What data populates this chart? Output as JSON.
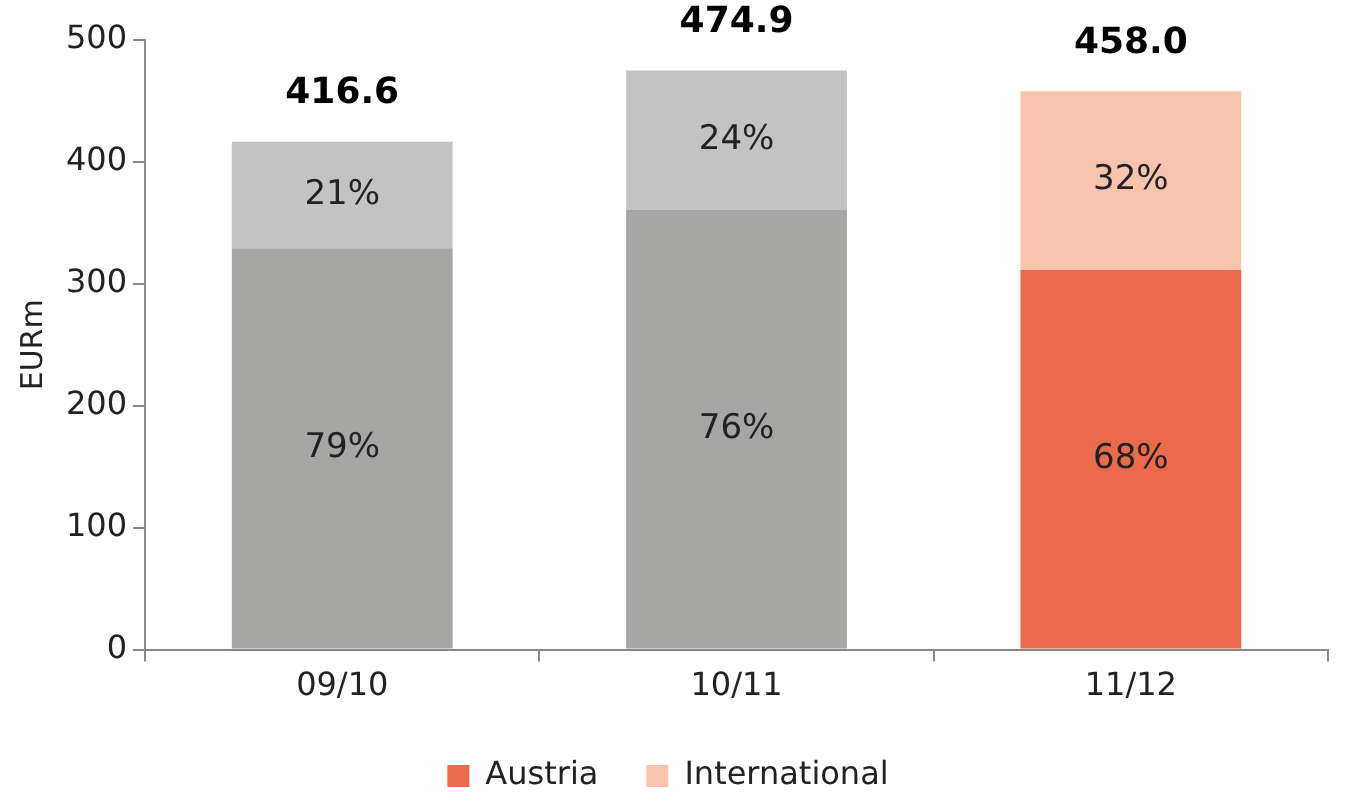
{
  "chart_data": {
    "type": "bar",
    "stacked": true,
    "ylabel": "EURm",
    "categories": [
      "09/10",
      "10/11",
      "11/12"
    ],
    "series": [
      {
        "color": "#a6a6a5",
        "values": [
          329.1,
          360.9,
          null
        ]
      },
      {
        "name": "Austria",
        "color": "#ec6a4c",
        "values": [
          null,
          null,
          311.4
        ]
      },
      {
        "color": "#c3c3c3",
        "values": [
          87.5,
          114.0,
          null
        ]
      },
      {
        "name": "International",
        "color": "#f8c4ad",
        "values": [
          null,
          null,
          146.6
        ]
      }
    ],
    "totals": [
      "416.6",
      "474.9",
      "458.0"
    ],
    "annotations": [
      "79%",
      "76%",
      "68%",
      "21%",
      "24%",
      "32%"
    ],
    "ylim": [
      0,
      500
    ],
    "yticks": [
      0,
      100,
      200,
      300,
      400,
      500
    ],
    "grid": false,
    "legend": "bottom"
  }
}
